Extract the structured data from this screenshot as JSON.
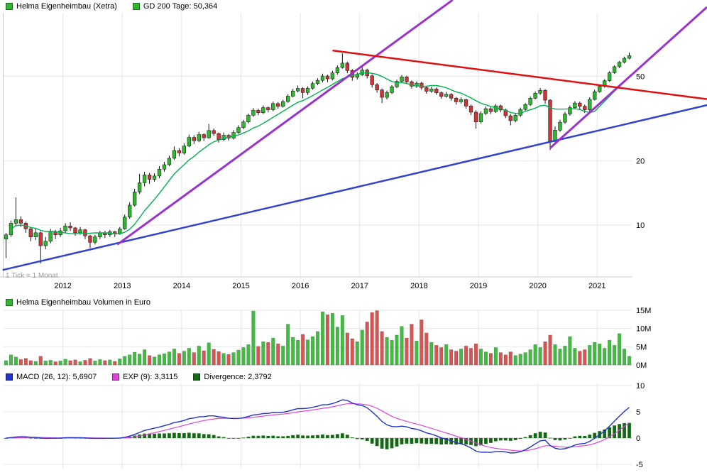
{
  "panels": {
    "price": {
      "legend": [
        {
          "swatch": "#2fb82f",
          "label": "Helma Eigenheimbau (Xetra)"
        },
        {
          "swatch": "#2fb82f",
          "label": "GD 200 Tage: 50,364"
        }
      ],
      "tick_note": "1 Tick = 1 Monat"
    },
    "volume": {
      "legend": [
        {
          "swatch": "#2fb82f",
          "label": "Helma Eigenheimbau Volumen in Euro"
        }
      ]
    },
    "macd": {
      "legend": [
        {
          "swatch": "#2233cc",
          "label": "MACD (26, 12): 5,6907"
        },
        {
          "swatch": "#dd44dd",
          "label": "EXP (9): 3,3115"
        },
        {
          "swatch": "#156915",
          "label": "Divergence: 2,3792"
        }
      ]
    }
  },
  "colors": {
    "candle_up": "#2fb82f",
    "candle_down": "#d03434",
    "wick": "#111111",
    "ma": "#00b050",
    "vol_up": "#45b945",
    "vol_down": "#d55555",
    "macd_line": "#2233cc",
    "signal_line": "#dd44dd",
    "hist": "#156915",
    "grid": "#e6e6e6",
    "axis": "#c8c8c8",
    "text": "#000000"
  },
  "chart_data": [
    {
      "type": "candlestick",
      "title": "Helma Eigenheimbau (Xetra), Xetra, monthly, log scale",
      "interval": "month",
      "start": "2011-01",
      "yscale": "log",
      "ylim": [
        6,
        100
      ],
      "y_ticks": [
        {
          "v": 10,
          "label": "10"
        },
        {
          "v": 20,
          "label": "20"
        },
        {
          "v": 50,
          "label": "50"
        }
      ],
      "x_labels": [
        {
          "label": "2012",
          "index": 12
        },
        {
          "label": "2013",
          "index": 24
        },
        {
          "label": "2014",
          "index": 36
        },
        {
          "label": "2015",
          "index": 48
        },
        {
          "label": "2016",
          "index": 60
        },
        {
          "label": "2017",
          "index": 72
        },
        {
          "label": "2018",
          "index": 84
        },
        {
          "label": "2019",
          "index": 96
        },
        {
          "label": "2020",
          "index": 108
        },
        {
          "label": "2021",
          "index": 120
        }
      ],
      "overlay_ma": {
        "name": "GD 200 Tage",
        "period_months": 10,
        "last_value": 50.364
      },
      "trendlines": [
        {
          "name": "long-term-support",
          "color": "#3344cc",
          "width": 2.5,
          "p1": [
            -0.7,
            6.15
          ],
          "p2": [
            142.2,
            36.8
          ]
        },
        {
          "name": "uptrend-2013",
          "color": "#9933cc",
          "width": 3,
          "p1": [
            22.5,
            8.1
          ],
          "p2": [
            90.3,
            114.0
          ]
        },
        {
          "name": "uptrend-2020",
          "color": "#9933cc",
          "width": 3,
          "p1": [
            110.0,
            23.0
          ],
          "p2": [
            141.7,
            105.5
          ]
        },
        {
          "name": "downtrend-2016",
          "color": "#e01010",
          "width": 2.5,
          "p1": [
            66.0,
            66.0
          ],
          "p2": [
            141.7,
            39.0
          ]
        }
      ],
      "ohlc": [
        [
          8.6,
          9.2,
          7.0,
          9.0
        ],
        [
          9.0,
          10.5,
          8.8,
          10.2
        ],
        [
          10.2,
          13.5,
          9.9,
          10.6
        ],
        [
          10.6,
          11.0,
          9.8,
          10.2
        ],
        [
          10.2,
          10.4,
          9.2,
          9.6
        ],
        [
          9.6,
          9.8,
          8.4,
          8.8
        ],
        [
          8.8,
          9.6,
          8.5,
          9.2
        ],
        [
          9.2,
          9.3,
          6.6,
          8.0
        ],
        [
          8.0,
          8.8,
          7.7,
          8.4
        ],
        [
          8.4,
          9.6,
          8.2,
          9.3
        ],
        [
          9.3,
          9.5,
          8.6,
          9.0
        ],
        [
          9.0,
          9.7,
          8.8,
          9.4
        ],
        [
          9.4,
          10.2,
          9.2,
          9.9
        ],
        [
          9.9,
          10.3,
          9.4,
          9.7
        ],
        [
          9.7,
          9.8,
          8.9,
          9.2
        ],
        [
          9.2,
          9.8,
          9.0,
          9.5
        ],
        [
          9.5,
          9.6,
          8.6,
          8.9
        ],
        [
          8.9,
          9.0,
          7.8,
          8.3
        ],
        [
          8.3,
          9.0,
          8.1,
          8.8
        ],
        [
          8.8,
          9.4,
          8.6,
          9.2
        ],
        [
          9.2,
          9.4,
          8.7,
          9.0
        ],
        [
          9.0,
          9.5,
          8.8,
          9.3
        ],
        [
          9.3,
          9.4,
          8.8,
          9.1
        ],
        [
          9.1,
          9.8,
          9.0,
          9.6
        ],
        [
          9.6,
          11.2,
          9.5,
          10.9
        ],
        [
          10.9,
          12.8,
          10.7,
          12.4
        ],
        [
          12.4,
          14.8,
          12.2,
          14.3
        ],
        [
          14.3,
          17.4,
          14.0,
          15.8
        ],
        [
          15.8,
          17.8,
          15.2,
          17.2
        ],
        [
          17.2,
          17.6,
          15.6,
          16.4
        ],
        [
          16.4,
          17.5,
          16.0,
          17.0
        ],
        [
          17.0,
          18.9,
          16.6,
          18.3
        ],
        [
          18.3,
          19.8,
          17.8,
          19.2
        ],
        [
          19.2,
          21.2,
          18.9,
          20.6
        ],
        [
          20.6,
          23.4,
          20.2,
          22.4
        ],
        [
          22.4,
          23.0,
          21.0,
          21.8
        ],
        [
          21.8,
          24.2,
          21.4,
          23.5
        ],
        [
          23.5,
          26.6,
          23.2,
          25.8
        ],
        [
          25.8,
          26.4,
          24.0,
          24.9
        ],
        [
          24.9,
          27.4,
          24.5,
          26.6
        ],
        [
          26.6,
          27.0,
          24.8,
          25.7
        ],
        [
          25.7,
          29.8,
          25.4,
          27.8
        ],
        [
          27.8,
          28.4,
          26.2,
          26.9
        ],
        [
          26.9,
          27.2,
          24.4,
          25.2
        ],
        [
          25.2,
          27.2,
          24.8,
          26.4
        ],
        [
          26.4,
          26.8,
          24.9,
          25.6
        ],
        [
          25.6,
          27.9,
          25.2,
          27.2
        ],
        [
          27.2,
          29.4,
          26.8,
          28.7
        ],
        [
          28.7,
          31.2,
          28.2,
          30.5
        ],
        [
          30.5,
          33.4,
          30.0,
          32.8
        ],
        [
          32.8,
          35.4,
          32.2,
          34.6
        ],
        [
          34.6,
          35.2,
          32.8,
          33.7
        ],
        [
          33.7,
          36.4,
          33.2,
          35.6
        ],
        [
          35.6,
          36.0,
          33.8,
          34.8
        ],
        [
          34.8,
          38.0,
          34.2,
          37.2
        ],
        [
          37.2,
          37.8,
          35.2,
          36.1
        ],
        [
          36.1,
          38.8,
          35.6,
          38.0
        ],
        [
          38.0,
          41.2,
          37.5,
          40.3
        ],
        [
          40.3,
          43.6,
          39.8,
          42.6
        ],
        [
          42.6,
          45.2,
          42.0,
          43.8
        ],
        [
          43.8,
          44.4,
          39.4,
          41.9
        ],
        [
          41.9,
          44.8,
          40.8,
          43.9
        ],
        [
          43.9,
          47.2,
          43.2,
          46.2
        ],
        [
          46.2,
          48.9,
          45.4,
          47.8
        ],
        [
          47.8,
          51.4,
          46.8,
          50.1
        ],
        [
          50.1,
          50.8,
          46.9,
          48.6
        ],
        [
          48.6,
          53.0,
          47.8,
          51.8
        ],
        [
          51.8,
          56.2,
          50.9,
          54.9
        ],
        [
          54.9,
          64.0,
          54.2,
          57.6
        ],
        [
          57.6,
          58.4,
          51.6,
          53.2
        ],
        [
          53.2,
          54.0,
          47.6,
          49.4
        ],
        [
          49.4,
          52.2,
          48.2,
          50.8
        ],
        [
          50.8,
          55.8,
          50.2,
          53.4
        ],
        [
          53.4,
          54.2,
          48.8,
          50.2
        ],
        [
          50.2,
          51.0,
          44.2,
          45.6
        ],
        [
          45.6,
          46.4,
          41.8,
          43.1
        ],
        [
          43.1,
          43.8,
          37.4,
          39.8
        ],
        [
          39.8,
          42.8,
          38.9,
          41.9
        ],
        [
          41.9,
          45.4,
          41.2,
          44.6
        ],
        [
          44.6,
          48.2,
          43.9,
          47.3
        ],
        [
          47.3,
          50.6,
          46.6,
          49.6
        ],
        [
          49.6,
          50.2,
          45.9,
          47.1
        ],
        [
          47.1,
          47.8,
          43.8,
          44.9
        ],
        [
          44.9,
          47.2,
          44.1,
          46.4
        ],
        [
          46.4,
          47.0,
          43.2,
          44.2
        ],
        [
          44.2,
          44.8,
          41.4,
          42.5
        ],
        [
          42.5,
          44.6,
          41.8,
          43.6
        ],
        [
          43.6,
          44.2,
          40.9,
          41.8
        ],
        [
          41.8,
          42.4,
          39.2,
          40.2
        ],
        [
          40.2,
          42.2,
          39.6,
          41.1
        ],
        [
          41.1,
          41.6,
          38.4,
          39.4
        ],
        [
          39.4,
          40.0,
          36.8,
          37.9
        ],
        [
          37.9,
          39.8,
          37.2,
          38.8
        ],
        [
          38.8,
          39.2,
          35.2,
          36.2
        ],
        [
          36.2,
          36.8,
          32.8,
          33.9
        ],
        [
          33.9,
          34.6,
          28.4,
          30.5
        ],
        [
          30.5,
          34.2,
          30.0,
          33.4
        ],
        [
          33.4,
          36.0,
          32.8,
          35.2
        ],
        [
          35.2,
          35.8,
          33.2,
          34.1
        ],
        [
          34.1,
          37.0,
          33.6,
          36.3
        ],
        [
          36.3,
          36.8,
          33.9,
          34.7
        ],
        [
          34.7,
          35.2,
          31.8,
          32.6
        ],
        [
          32.6,
          33.2,
          29.4,
          30.9
        ],
        [
          30.9,
          33.6,
          30.4,
          32.8
        ],
        [
          32.8,
          35.6,
          32.2,
          34.9
        ],
        [
          34.9,
          37.4,
          34.4,
          36.8
        ],
        [
          36.8,
          40.2,
          36.2,
          39.4
        ],
        [
          39.4,
          42.4,
          38.9,
          41.6
        ],
        [
          41.6,
          44.0,
          40.8,
          42.9
        ],
        [
          42.9,
          43.4,
          37.2,
          38.6
        ],
        [
          38.6,
          39.0,
          22.5,
          24.8
        ],
        [
          24.8,
          29.0,
          24.2,
          27.9
        ],
        [
          27.9,
          31.2,
          27.4,
          30.4
        ],
        [
          30.4,
          34.0,
          29.9,
          33.2
        ],
        [
          33.2,
          36.4,
          32.6,
          35.6
        ],
        [
          35.6,
          38.2,
          34.9,
          37.4
        ],
        [
          37.4,
          38.0,
          34.9,
          36.1
        ],
        [
          36.1,
          36.8,
          33.6,
          34.8
        ],
        [
          34.8,
          39.8,
          34.2,
          38.9
        ],
        [
          38.9,
          43.2,
          38.4,
          42.3
        ],
        [
          42.3,
          45.6,
          41.8,
          44.8
        ],
        [
          44.8,
          48.4,
          44.2,
          47.6
        ],
        [
          47.6,
          52.8,
          47.0,
          51.9
        ],
        [
          51.9,
          56.2,
          51.2,
          55.4
        ],
        [
          55.4,
          59.0,
          54.6,
          58.2
        ],
        [
          58.2,
          61.8,
          57.4,
          60.7
        ],
        [
          60.7,
          64.5,
          60.0,
          62.4
        ]
      ]
    },
    {
      "type": "bar",
      "title": "Helma Eigenheimbau Volumen in Euro",
      "unit": "million EUR",
      "ylim": [
        0,
        15
      ],
      "y_ticks": [
        {
          "v": 0,
          "label": "0M"
        },
        {
          "v": 5,
          "label": "5M"
        },
        {
          "v": 10,
          "label": "10M"
        },
        {
          "v": 15,
          "label": "15M"
        }
      ],
      "values_millions": [
        1.2,
        2.8,
        2.2,
        1.5,
        1.8,
        1.2,
        1.0,
        2.4,
        1.1,
        1.3,
        0.9,
        1.1,
        1.6,
        1.2,
        1.4,
        0.9,
        1.3,
        1.8,
        1.1,
        1.5,
        1.2,
        1.4,
        1.0,
        1.7,
        2.4,
        2.8,
        3.5,
        3.0,
        4.2,
        2.6,
        2.2,
        2.8,
        3.1,
        3.6,
        4.4,
        3.2,
        3.8,
        4.6,
        3.4,
        5.2,
        3.9,
        6.1,
        4.3,
        3.7,
        3.2,
        2.9,
        3.4,
        4.1,
        4.8,
        5.6,
        14.8,
        5.1,
        6.4,
        6.2,
        7.4,
        5.8,
        5.2,
        11.2,
        7.6,
        6.8,
        8.4,
        6.9,
        7.8,
        9.2,
        14.6,
        13.8,
        14.2,
        10.4,
        13.6,
        8.8,
        7.2,
        6.4,
        9.6,
        11.8,
        14.4,
        14.9,
        9.2,
        7.6,
        6.8,
        8.2,
        10.6,
        7.4,
        11.2,
        6.6,
        12.4,
        8.8,
        6.2,
        5.4,
        4.8,
        5.6,
        4.2,
        3.8,
        4.4,
        5.2,
        4.6,
        5.8,
        4.4,
        3.6,
        3.2,
        4.8,
        3.4,
        2.8,
        3.6,
        2.6,
        3.0,
        3.4,
        4.2,
        5.6,
        4.8,
        6.4,
        8.2,
        5.6,
        4.4,
        5.2,
        7.8,
        4.6,
        3.8,
        4.2,
        5.4,
        6.2,
        5.8,
        4.6,
        6.8,
        5.4,
        8.6,
        4.4,
        2.4
      ]
    },
    {
      "type": "line",
      "title": "MACD",
      "derived_from": "monthly closes of price panel",
      "params": {
        "fast": 12,
        "slow": 26,
        "signal": 9
      },
      "last_values": {
        "macd": 5.6907,
        "exp9": 3.3115,
        "divergence": 2.3792
      },
      "ylim": [
        -5,
        10
      ],
      "y_ticks": [
        {
          "v": -5,
          "label": "-5"
        },
        {
          "v": 0,
          "label": "0"
        },
        {
          "v": 5,
          "label": "5"
        },
        {
          "v": 10,
          "label": "10"
        }
      ]
    }
  ]
}
